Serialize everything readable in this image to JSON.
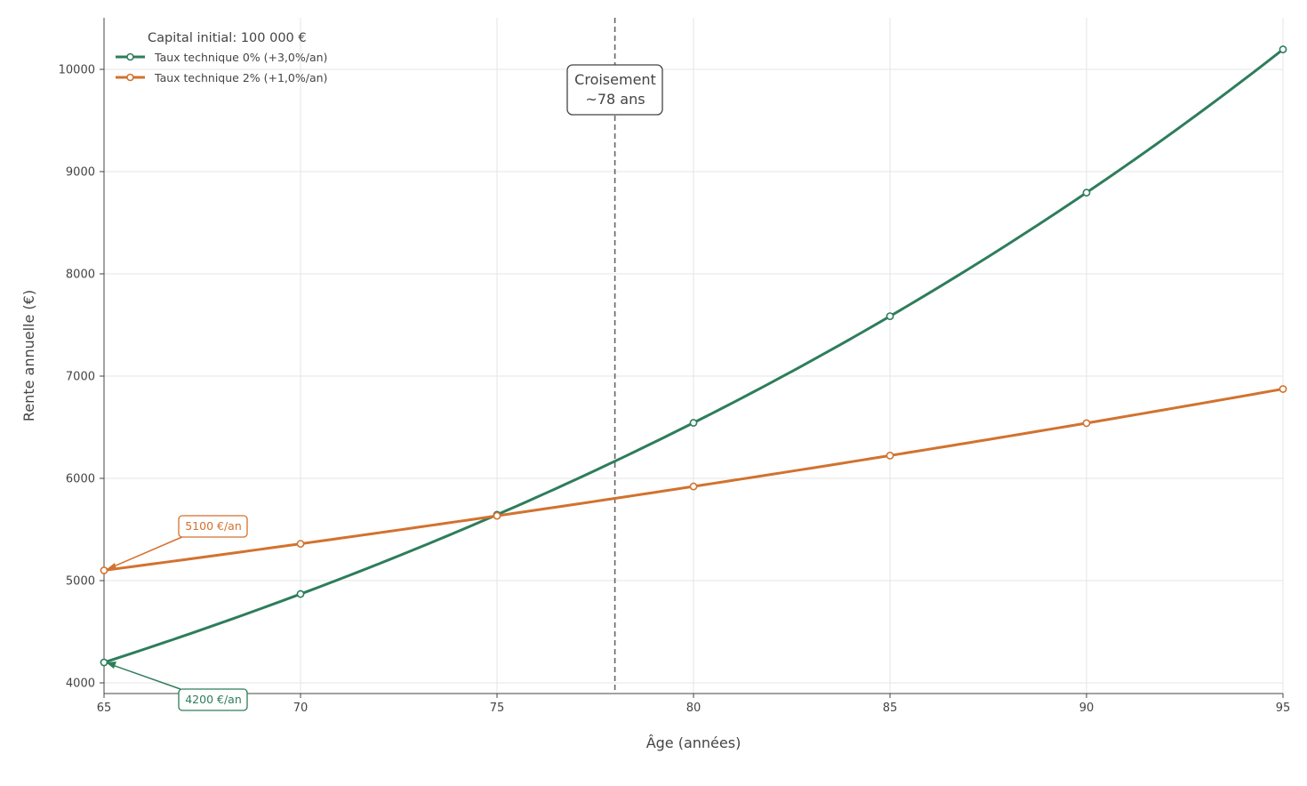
{
  "chart_data": {
    "type": "line",
    "title": "",
    "xlabel": "Âge (années)",
    "ylabel": "Rente annuelle (€)",
    "x": [
      65,
      70,
      75,
      80,
      85,
      90,
      95
    ],
    "xlim": [
      65,
      95
    ],
    "ylim": [
      3900,
      10500
    ],
    "xticks": [
      65,
      70,
      75,
      80,
      85,
      90,
      95
    ],
    "yticks": [
      4000,
      5000,
      6000,
      7000,
      8000,
      9000,
      10000
    ],
    "grid": true,
    "legend_position": "upper left",
    "legend_title": "Capital initial: 100 000 €",
    "series": [
      {
        "name": "Taux technique 0% (+3,0%/an)",
        "color": "#2e7d5b",
        "values": [
          4200,
          4869,
          5644,
          6543,
          7586,
          8794,
          10195
        ]
      },
      {
        "name": "Taux technique 2% (+1,0%/an)",
        "color": "#d2722f",
        "values": [
          5100,
          5360,
          5634,
          5921,
          6223,
          6540,
          6874
        ]
      }
    ],
    "annotations": [
      {
        "text": "5100 €/an",
        "x": 65,
        "y": 5100,
        "series": 1,
        "color": "#d2722f"
      },
      {
        "text": "4200 €/an",
        "x": 65,
        "y": 4200,
        "series": 0,
        "color": "#2e7d5b"
      }
    ],
    "vline": {
      "x": 78,
      "style": "dashed",
      "color": "#666666"
    },
    "callout": {
      "lines": [
        "Croisement",
        "~78 ans"
      ],
      "x": 78
    }
  },
  "colors": {
    "green": "#2e7d5b",
    "orange": "#d2722f",
    "grid": "#e6e6e6",
    "axis": "#444444"
  }
}
